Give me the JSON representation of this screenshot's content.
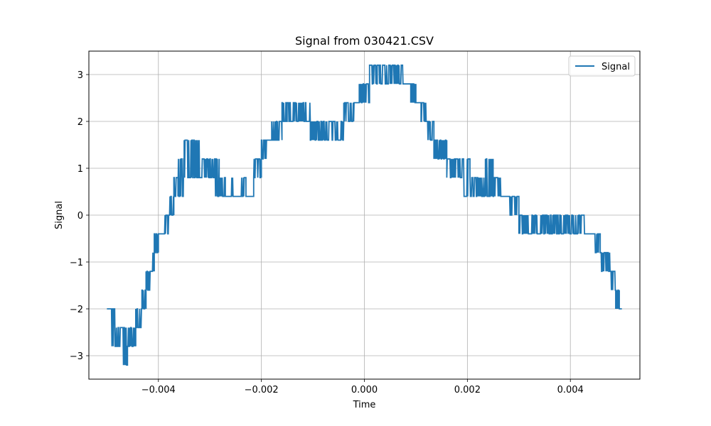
{
  "chart_data": {
    "type": "line",
    "title": "Signal from 030421.CSV",
    "xlabel": "Time",
    "ylabel": "Signal",
    "xlim": [
      -0.00535,
      0.00535
    ],
    "ylim": [
      -3.5,
      3.5
    ],
    "xticks": [
      -0.004,
      -0.002,
      0.0,
      0.002,
      0.004
    ],
    "xtick_labels": [
      "−0.004",
      "−0.002",
      "0.000",
      "0.002",
      "0.004"
    ],
    "yticks": [
      -3,
      -2,
      -1,
      0,
      1,
      2,
      3
    ],
    "ytick_labels": [
      "−3",
      "−2",
      "−1",
      "0",
      "1",
      "2",
      "3"
    ],
    "grid": true,
    "legend_position": "top-right",
    "series": [
      {
        "name": "Signal",
        "color": "#1f77b4",
        "segments": [
          {
            "t0": -0.005,
            "t1": -0.00492,
            "lo": -2.0,
            "hi": -2.0
          },
          {
            "t0": -0.00492,
            "t1": -0.00484,
            "lo": -2.8,
            "hi": -2.0
          },
          {
            "t0": -0.00484,
            "t1": -0.00474,
            "lo": -2.8,
            "hi": -2.4
          },
          {
            "t0": -0.00474,
            "t1": -0.0046,
            "lo": -3.2,
            "hi": -2.4
          },
          {
            "t0": -0.0046,
            "t1": -0.00452,
            "lo": -2.8,
            "hi": -2.4
          },
          {
            "t0": -0.00452,
            "t1": -0.00444,
            "lo": -2.8,
            "hi": -2.4
          },
          {
            "t0": -0.00444,
            "t1": -0.00432,
            "lo": -2.4,
            "hi": -2.0
          },
          {
            "t0": -0.00432,
            "t1": -0.00424,
            "lo": -2.0,
            "hi": -1.6
          },
          {
            "t0": -0.00424,
            "t1": -0.00416,
            "lo": -1.6,
            "hi": -1.2
          },
          {
            "t0": -0.00416,
            "t1": -0.00408,
            "lo": -1.2,
            "hi": -0.8
          },
          {
            "t0": -0.00408,
            "t1": -0.004,
            "lo": -0.8,
            "hi": -0.4
          },
          {
            "t0": -0.004,
            "t1": -0.00388,
            "lo": -0.4,
            "hi": -0.4
          },
          {
            "t0": -0.00388,
            "t1": -0.0038,
            "lo": -0.4,
            "hi": 0.0
          },
          {
            "t0": -0.0038,
            "t1": -0.0037,
            "lo": 0.0,
            "hi": 0.4
          },
          {
            "t0": -0.0037,
            "t1": -0.00362,
            "lo": 0.4,
            "hi": 0.8
          },
          {
            "t0": -0.00362,
            "t1": -0.0035,
            "lo": 0.4,
            "hi": 1.2
          },
          {
            "t0": -0.0035,
            "t1": -0.00335,
            "lo": 0.8,
            "hi": 1.6
          },
          {
            "t0": -0.00335,
            "t1": -0.0032,
            "lo": 0.8,
            "hi": 1.6
          },
          {
            "t0": -0.0032,
            "t1": -0.003,
            "lo": 0.8,
            "hi": 1.2
          },
          {
            "t0": -0.003,
            "t1": -0.0029,
            "lo": 0.8,
            "hi": 1.2
          },
          {
            "t0": -0.0029,
            "t1": -0.00282,
            "lo": 0.4,
            "hi": 1.2
          },
          {
            "t0": -0.00282,
            "t1": -0.0027,
            "lo": 0.4,
            "hi": 0.8
          },
          {
            "t0": -0.0027,
            "t1": -0.0026,
            "lo": 0.4,
            "hi": 0.4
          },
          {
            "t0": -0.0026,
            "t1": -0.0025,
            "lo": 0.4,
            "hi": 0.8
          },
          {
            "t0": -0.0025,
            "t1": -0.0024,
            "lo": 0.4,
            "hi": 0.4
          },
          {
            "t0": -0.0024,
            "t1": -0.0023,
            "lo": 0.4,
            "hi": 0.8
          },
          {
            "t0": -0.0023,
            "t1": -0.00215,
            "lo": 0.4,
            "hi": 0.4
          },
          {
            "t0": -0.00215,
            "t1": -0.002,
            "lo": 0.8,
            "hi": 1.2
          },
          {
            "t0": -0.002,
            "t1": -0.0019,
            "lo": 1.2,
            "hi": 1.6
          },
          {
            "t0": -0.0019,
            "t1": -0.0018,
            "lo": 1.6,
            "hi": 1.6
          },
          {
            "t0": -0.0018,
            "t1": -0.0017,
            "lo": 1.6,
            "hi": 2.0
          },
          {
            "t0": -0.0017,
            "t1": -0.0016,
            "lo": 1.6,
            "hi": 2.0
          },
          {
            "t0": -0.0016,
            "t1": -0.0015,
            "lo": 2.0,
            "hi": 2.4
          },
          {
            "t0": -0.0015,
            "t1": -0.00125,
            "lo": 2.0,
            "hi": 2.4
          },
          {
            "t0": -0.00125,
            "t1": -0.00105,
            "lo": 2.0,
            "hi": 2.4
          },
          {
            "t0": -0.00105,
            "t1": -0.0008,
            "lo": 1.6,
            "hi": 2.0
          },
          {
            "t0": -0.0008,
            "t1": -0.0006,
            "lo": 1.6,
            "hi": 2.0
          },
          {
            "t0": -0.0006,
            "t1": -0.0004,
            "lo": 1.6,
            "hi": 2.0
          },
          {
            "t0": -0.0004,
            "t1": -0.0003,
            "lo": 2.0,
            "hi": 2.4
          },
          {
            "t0": -0.0003,
            "t1": -0.0002,
            "lo": 2.0,
            "hi": 2.4
          },
          {
            "t0": -0.0002,
            "t1": -0.0001,
            "lo": 2.4,
            "hi": 2.4
          },
          {
            "t0": -0.0001,
            "t1": 0.0001,
            "lo": 2.4,
            "hi": 2.8
          },
          {
            "t0": 0.0001,
            "t1": 0.00025,
            "lo": 2.8,
            "hi": 3.2
          },
          {
            "t0": 0.00025,
            "t1": 0.0005,
            "lo": 2.8,
            "hi": 3.2
          },
          {
            "t0": 0.0005,
            "t1": 0.00075,
            "lo": 2.8,
            "hi": 3.2
          },
          {
            "t0": 0.00075,
            "t1": 0.0009,
            "lo": 2.8,
            "hi": 2.8
          },
          {
            "t0": 0.0009,
            "t1": 0.001,
            "lo": 2.4,
            "hi": 2.8
          },
          {
            "t0": 0.001,
            "t1": 0.0011,
            "lo": 2.4,
            "hi": 2.4
          },
          {
            "t0": 0.0011,
            "t1": 0.0012,
            "lo": 2.0,
            "hi": 2.4
          },
          {
            "t0": 0.0012,
            "t1": 0.00135,
            "lo": 1.6,
            "hi": 2.0
          },
          {
            "t0": 0.00135,
            "t1": 0.0015,
            "lo": 1.2,
            "hi": 1.6
          },
          {
            "t0": 0.0015,
            "t1": 0.0016,
            "lo": 1.2,
            "hi": 1.6
          },
          {
            "t0": 0.0016,
            "t1": 0.00175,
            "lo": 0.8,
            "hi": 1.2
          },
          {
            "t0": 0.00175,
            "t1": 0.0019,
            "lo": 0.8,
            "hi": 1.2
          },
          {
            "t0": 0.0019,
            "t1": 0.00205,
            "lo": 0.4,
            "hi": 1.2
          },
          {
            "t0": 0.00205,
            "t1": 0.0022,
            "lo": 0.4,
            "hi": 0.8
          },
          {
            "t0": 0.0022,
            "t1": 0.00235,
            "lo": 0.4,
            "hi": 0.8
          },
          {
            "t0": 0.00235,
            "t1": 0.0025,
            "lo": 0.4,
            "hi": 1.2
          },
          {
            "t0": 0.0025,
            "t1": 0.00265,
            "lo": 0.4,
            "hi": 0.8
          },
          {
            "t0": 0.00265,
            "t1": 0.00282,
            "lo": 0.4,
            "hi": 0.4
          },
          {
            "t0": 0.00282,
            "t1": 0.003,
            "lo": 0.0,
            "hi": 0.4
          },
          {
            "t0": 0.003,
            "t1": 0.0031,
            "lo": -0.4,
            "hi": 0.0
          },
          {
            "t0": 0.0031,
            "t1": 0.0034,
            "lo": -0.4,
            "hi": 0.0
          },
          {
            "t0": 0.0034,
            "t1": 0.0037,
            "lo": -0.4,
            "hi": 0.0
          },
          {
            "t0": 0.0037,
            "t1": 0.004,
            "lo": -0.4,
            "hi": 0.0
          },
          {
            "t0": 0.004,
            "t1": 0.0043,
            "lo": -0.4,
            "hi": 0.0
          },
          {
            "t0": 0.0043,
            "t1": 0.00445,
            "lo": -0.4,
            "hi": -0.4
          },
          {
            "t0": 0.00445,
            "t1": 0.00458,
            "lo": -0.8,
            "hi": -0.4
          },
          {
            "t0": 0.00458,
            "t1": 0.0047,
            "lo": -1.2,
            "hi": -0.8
          },
          {
            "t0": 0.0047,
            "t1": 0.00478,
            "lo": -1.2,
            "hi": -0.8
          },
          {
            "t0": 0.00478,
            "t1": 0.00488,
            "lo": -1.6,
            "hi": -1.2
          },
          {
            "t0": 0.00488,
            "t1": 0.00495,
            "lo": -2.0,
            "hi": -1.6
          },
          {
            "t0": 0.00495,
            "t1": 0.005,
            "lo": -2.0,
            "hi": -2.0
          }
        ]
      }
    ]
  }
}
